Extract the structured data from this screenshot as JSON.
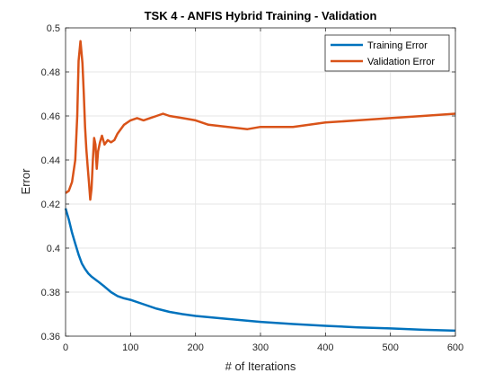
{
  "chart_data": {
    "type": "line",
    "title": "TSK 4 - ANFIS Hybrid Training - Validation",
    "xlabel": "# of Iterations",
    "ylabel": "Error",
    "xlim": [
      0,
      600
    ],
    "ylim": [
      0.36,
      0.5
    ],
    "xticks": [
      0,
      100,
      200,
      300,
      400,
      500,
      600
    ],
    "yticks": [
      0.36,
      0.38,
      0.4,
      0.42,
      0.44,
      0.46,
      0.48,
      0.5
    ],
    "xtick_labels": [
      "0",
      "100",
      "200",
      "300",
      "400",
      "500",
      "600"
    ],
    "ytick_labels": [
      "0.36",
      "0.38",
      "0.4",
      "0.42",
      "0.44",
      "0.46",
      "0.48",
      "0.5"
    ],
    "grid": true,
    "legend": {
      "position": "top-right",
      "entries": [
        "Training Error",
        "Validation Error"
      ]
    },
    "series": [
      {
        "name": "Training Error",
        "color": "#0072BD",
        "x": [
          0,
          5,
          10,
          15,
          20,
          25,
          30,
          35,
          40,
          50,
          60,
          70,
          80,
          90,
          100,
          120,
          140,
          160,
          180,
          200,
          250,
          300,
          350,
          400,
          450,
          500,
          550,
          600
        ],
        "y": [
          0.418,
          0.413,
          0.407,
          0.402,
          0.397,
          0.393,
          0.3905,
          0.3885,
          0.387,
          0.3848,
          0.3825,
          0.38,
          0.3782,
          0.3772,
          0.3765,
          0.3745,
          0.3725,
          0.371,
          0.37,
          0.3692,
          0.3678,
          0.3665,
          0.3655,
          0.3647,
          0.364,
          0.3635,
          0.3629,
          0.3625
        ]
      },
      {
        "name": "Validation Error",
        "color": "#D95319",
        "x": [
          0,
          5,
          10,
          15,
          18,
          20,
          23,
          26,
          28,
          30,
          32,
          34,
          36,
          38,
          40,
          42,
          44,
          46,
          48,
          50,
          53,
          56,
          60,
          65,
          70,
          75,
          80,
          90,
          100,
          110,
          120,
          130,
          140,
          150,
          160,
          180,
          200,
          220,
          250,
          280,
          300,
          320,
          350,
          400,
          450,
          500,
          550,
          600
        ],
        "y": [
          0.425,
          0.426,
          0.43,
          0.44,
          0.46,
          0.485,
          0.494,
          0.484,
          0.47,
          0.455,
          0.445,
          0.437,
          0.43,
          0.422,
          0.427,
          0.44,
          0.45,
          0.447,
          0.436,
          0.444,
          0.448,
          0.451,
          0.447,
          0.449,
          0.448,
          0.449,
          0.452,
          0.456,
          0.458,
          0.459,
          0.458,
          0.459,
          0.46,
          0.461,
          0.46,
          0.459,
          0.458,
          0.456,
          0.455,
          0.454,
          0.455,
          0.455,
          0.455,
          0.457,
          0.458,
          0.459,
          0.46,
          0.461
        ]
      }
    ]
  }
}
